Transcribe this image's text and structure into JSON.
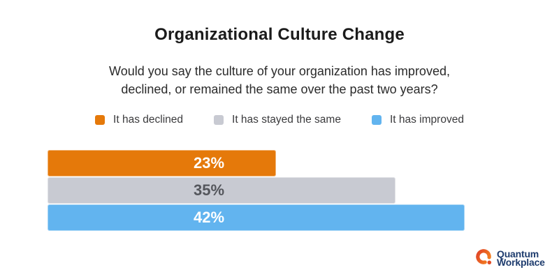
{
  "chart_data": {
    "type": "bar",
    "orientation": "horizontal",
    "title": "Organizational Culture Change",
    "subtitle_line1": "Would you say the culture of your organization has improved,",
    "subtitle_line2": "declined, or remained the same over the past two years?",
    "categories": [
      "It has declined",
      "It has stayed the same",
      "It has improved"
    ],
    "values": [
      23,
      35,
      42
    ],
    "value_labels": [
      "23%",
      "35%",
      "42%"
    ],
    "bar_colors": [
      "#E5790A",
      "#C8CAD2",
      "#62B4EF"
    ],
    "value_label_colors": [
      "#FFFFFF",
      "#54565C",
      "#FFFFFF"
    ],
    "unit": "%",
    "xlim": [
      0,
      47
    ],
    "grid": false,
    "legend_position": "top",
    "legend": [
      {
        "label": "It has declined",
        "color": "#E5790A"
      },
      {
        "label": "It has stayed the same",
        "color": "#C8CAD2"
      },
      {
        "label": "It has improved",
        "color": "#62B4EF"
      }
    ]
  },
  "branding": {
    "name_line1": "Quantum",
    "name_line2": "Workplace",
    "mark_color_start": "#E04327",
    "mark_color_end": "#F5861F",
    "text_color": "#1E3C6E"
  }
}
